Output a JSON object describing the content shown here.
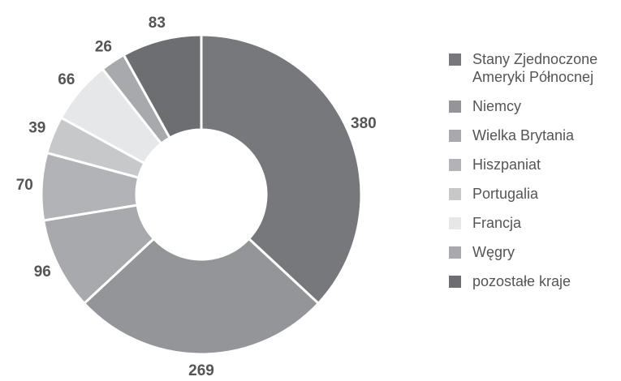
{
  "chart_data": {
    "type": "donut",
    "categories": [
      "Stany Zjednoczone Ameryki Północnej",
      "Niemcy",
      "Wielka Brytania",
      "Hiszpaniat",
      "Portugalia",
      "Francja",
      "Węgry",
      "pozostałe kraje"
    ],
    "values": [
      380,
      269,
      96,
      70,
      39,
      66,
      26,
      83
    ],
    "colors": [
      "#77787b",
      "#939598",
      "#a7a9ac",
      "#b1b3b6",
      "#c7c8ca",
      "#e6e7e8",
      "#a7a9ac",
      "#6d6e71"
    ],
    "legend": "right"
  }
}
